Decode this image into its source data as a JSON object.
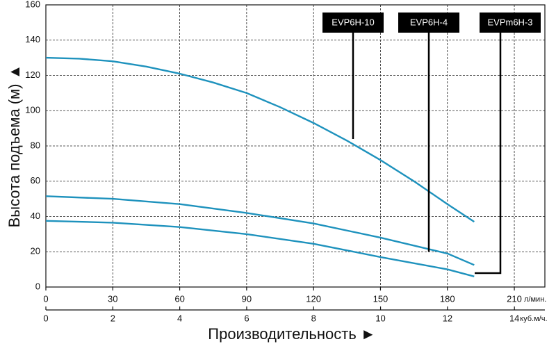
{
  "chart_data": {
    "type": "line",
    "y_label": "Высота подъема (м) ▲",
    "x_label": "Производительность ►",
    "x_unit": "л/мин.",
    "x2_unit": "куб.м/ч.",
    "xlim": [
      0,
      223.7
    ],
    "xticks": [
      0,
      30,
      60,
      90,
      120,
      150,
      180,
      210
    ],
    "x2lim": [
      0,
      14.91
    ],
    "x2ticks": [
      0,
      2,
      4,
      6,
      8,
      10,
      12,
      14
    ],
    "ylim": [
      0,
      160
    ],
    "yticks": [
      0,
      20,
      40,
      60,
      80,
      100,
      120,
      140,
      160
    ],
    "grid": true,
    "series": [
      {
        "name": "EVP6H-10",
        "color": "#1e92bd",
        "x": [
          0,
          15,
          30,
          45,
          60,
          75,
          90,
          105,
          120,
          135,
          150,
          165,
          180,
          192
        ],
        "values": [
          130,
          129.5,
          128,
          125,
          121,
          116,
          110,
          102,
          93,
          83,
          72,
          60,
          47,
          37
        ]
      },
      {
        "name": "EVP6H-4",
        "color": "#1e92bd",
        "x": [
          0,
          30,
          60,
          90,
          120,
          150,
          180,
          192
        ],
        "values": [
          51.5,
          50,
          47,
          42,
          36,
          28,
          19,
          12.5
        ]
      },
      {
        "name": "EVPm6H-3",
        "color": "#1e92bd",
        "x": [
          0,
          30,
          60,
          90,
          120,
          150,
          180,
          192
        ],
        "values": [
          37.5,
          36.5,
          34,
          30,
          24.5,
          17,
          10,
          6
        ]
      }
    ]
  }
}
